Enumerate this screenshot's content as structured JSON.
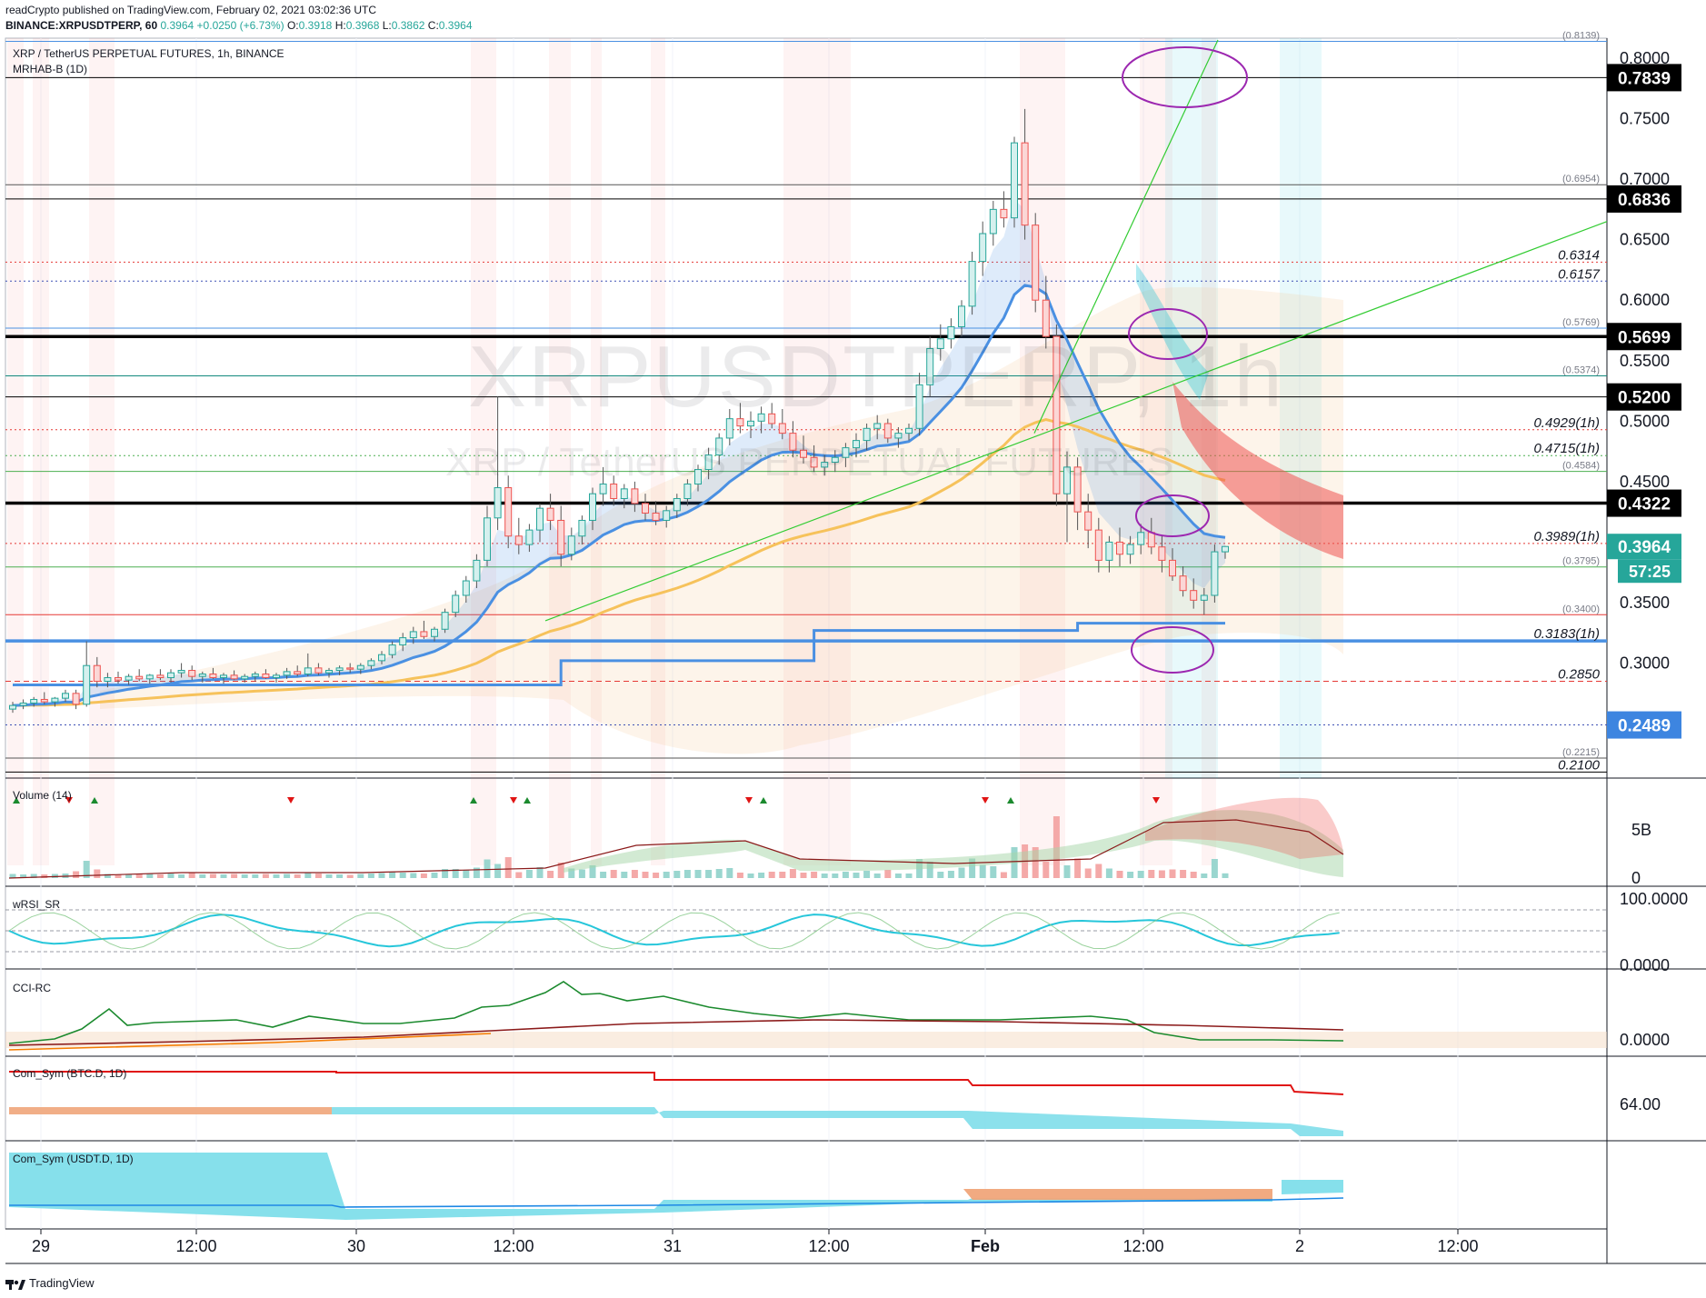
{
  "header": {
    "author_line": "readCrypto published on TradingView.com, February 02, 2021 03:02:36 UTC",
    "author": "readCrypto",
    "ohlc_line": {
      "symbol": "BINANCE:XRPUSDTPERP, 60",
      "last": "0.3964",
      "change": "+0.0250 (+6.73%)",
      "o_label": "O:",
      "o": "0.3918",
      "h_label": "H:",
      "h": "0.3968",
      "l_label": "L:",
      "l": "0.3862",
      "c_label": "C:",
      "c": "0.3964"
    }
  },
  "legend": {
    "symbol_title": "XRP / TetherUS PERPETUAL FUTURES, 1h, BINANCE",
    "indicator": "MRHAB-B (1D)"
  },
  "watermark": {
    "ticker": "XRPUSDTPERP, 1h",
    "name": "XRP / TetherUS PERPETUAL FUTURES"
  },
  "panes": {
    "volume": "Volume (14)",
    "rsi": "wRSI_SR",
    "cci": "CCI-RC",
    "btcd": "Com_Sym (BTC.D, 1D)",
    "usdtd": "Com_Sym (USDT.D, 1D)"
  },
  "footer": {
    "brand": "TradingView"
  },
  "colors": {
    "up": "#26a69a",
    "down": "#ef5350",
    "ma_blue": "#4a90e2",
    "ma_yellow": "#f6c25b",
    "line_green": "#33cc33",
    "black": "#000000",
    "circle": "#9c27b0",
    "price_badge": "#26a69a",
    "blue_badge": "#3d85e0"
  },
  "chart_data": [
    {
      "type": "candlestick",
      "title": "XRP / TetherUS PERPETUAL FUTURES, 1h, BINANCE",
      "x_ticks": [
        "29",
        "12:00",
        "30",
        "12:00",
        "31",
        "12:00",
        "Feb",
        "12:00",
        "2",
        "12:00"
      ],
      "y_ticks": [
        "0.8000",
        "0.7500",
        "0.7000",
        "0.6500",
        "0.6000",
        "0.5500",
        "0.5000",
        "0.4500",
        "0.3500",
        "0.3000"
      ],
      "ylim": [
        0.205,
        0.815
      ],
      "current_price": "0.3964",
      "countdown": "57:25",
      "price_badges": [
        {
          "label": "0.7839",
          "value": 0.7839,
          "style": "black"
        },
        {
          "label": "0.6836",
          "value": 0.6836,
          "style": "black"
        },
        {
          "label": "0.5699",
          "value": 0.5699,
          "style": "black"
        },
        {
          "label": "0.5200",
          "value": 0.52,
          "style": "black"
        },
        {
          "label": "0.4322",
          "value": 0.4322,
          "style": "black"
        },
        {
          "label": "0.2489",
          "value": 0.2489,
          "style": "blue"
        }
      ],
      "level_lines": [
        {
          "value": 0.8139,
          "color": "#4a90e2",
          "label": "(0.8139)",
          "style": "solid"
        },
        {
          "value": 0.7839,
          "color": "#000000",
          "label": "",
          "style": "solid"
        },
        {
          "value": 0.6954,
          "color": "#555555",
          "label": "(0.6954)",
          "style": "solid"
        },
        {
          "value": 0.6836,
          "color": "#000000",
          "label": "",
          "style": "solid"
        },
        {
          "value": 0.6314,
          "color": "#e53935",
          "label": "0.6314",
          "style": "dotted"
        },
        {
          "value": 0.6157,
          "color": "#3f51b5",
          "label": "0.6157",
          "style": "dotted"
        },
        {
          "value": 0.5769,
          "color": "#4a90e2",
          "label": "(0.5769)",
          "style": "solid"
        },
        {
          "value": 0.5699,
          "color": "#000000",
          "label": "",
          "style": "bold"
        },
        {
          "value": 0.5374,
          "color": "#138a7e",
          "label": "(0.5374)",
          "style": "solid"
        },
        {
          "value": 0.52,
          "color": "#000000",
          "label": "",
          "style": "solid"
        },
        {
          "value": 0.4929,
          "color": "#e53935",
          "label": "0.4929(1h)",
          "style": "dotted"
        },
        {
          "value": 0.4715,
          "color": "#4caf50",
          "label": "0.4715(1h)",
          "style": "dotted"
        },
        {
          "value": 0.4584,
          "color": "#4caf50",
          "label": "(0.4584)",
          "style": "solid"
        },
        {
          "value": 0.4322,
          "color": "#000000",
          "label": "",
          "style": "bold"
        },
        {
          "value": 0.3989,
          "color": "#e53935",
          "label": "0.3989(1h)",
          "style": "dotted"
        },
        {
          "value": 0.3795,
          "color": "#4caf50",
          "label": "(0.3795)",
          "style": "solid"
        },
        {
          "value": 0.34,
          "color": "#e53935",
          "label": "(0.3400)",
          "style": "solid"
        },
        {
          "value": 0.3183,
          "color": "#4a90e2",
          "label": "0.3183(1h)",
          "style": "thick"
        },
        {
          "value": 0.285,
          "color": "#e53935",
          "label": "0.2850",
          "style": "dashed"
        },
        {
          "value": 0.2489,
          "color": "#3f51b5",
          "label": "",
          "style": "dotted"
        },
        {
          "value": 0.2215,
          "color": "#555555",
          "label": "(0.2215)",
          "style": "solid"
        },
        {
          "value": 0.21,
          "color": "#000000",
          "label": "0.2100",
          "style": "solid"
        }
      ],
      "candles": [
        [
          0.262,
          0.268,
          0.259,
          0.265
        ],
        [
          0.265,
          0.27,
          0.262,
          0.267
        ],
        [
          0.267,
          0.272,
          0.264,
          0.27
        ],
        [
          0.27,
          0.276,
          0.266,
          0.268
        ],
        [
          0.268,
          0.272,
          0.264,
          0.271
        ],
        [
          0.271,
          0.278,
          0.268,
          0.275
        ],
        [
          0.275,
          0.278,
          0.262,
          0.266
        ],
        [
          0.266,
          0.318,
          0.264,
          0.298
        ],
        [
          0.298,
          0.305,
          0.28,
          0.285
        ],
        [
          0.285,
          0.292,
          0.28,
          0.288
        ],
        [
          0.288,
          0.293,
          0.283,
          0.286
        ],
        [
          0.286,
          0.291,
          0.282,
          0.289
        ],
        [
          0.289,
          0.295,
          0.285,
          0.287
        ],
        [
          0.287,
          0.291,
          0.283,
          0.29
        ],
        [
          0.29,
          0.295,
          0.286,
          0.288
        ],
        [
          0.288,
          0.295,
          0.284,
          0.292
        ],
        [
          0.292,
          0.3,
          0.288,
          0.294
        ],
        [
          0.294,
          0.298,
          0.286,
          0.289
        ],
        [
          0.289,
          0.293,
          0.284,
          0.291
        ],
        [
          0.291,
          0.296,
          0.287,
          0.288
        ],
        [
          0.288,
          0.292,
          0.283,
          0.29
        ],
        [
          0.29,
          0.294,
          0.286,
          0.287
        ],
        [
          0.287,
          0.291,
          0.284,
          0.289
        ],
        [
          0.289,
          0.293,
          0.285,
          0.291
        ],
        [
          0.291,
          0.295,
          0.287,
          0.288
        ],
        [
          0.288,
          0.292,
          0.284,
          0.29
        ],
        [
          0.29,
          0.296,
          0.287,
          0.293
        ],
        [
          0.293,
          0.298,
          0.289,
          0.291
        ],
        [
          0.291,
          0.308,
          0.289,
          0.296
        ],
        [
          0.296,
          0.3,
          0.29,
          0.292
        ],
        [
          0.292,
          0.296,
          0.288,
          0.294
        ],
        [
          0.294,
          0.298,
          0.29,
          0.296
        ],
        [
          0.296,
          0.3,
          0.292,
          0.295
        ],
        [
          0.295,
          0.3,
          0.291,
          0.298
        ],
        [
          0.298,
          0.304,
          0.295,
          0.302
        ],
        [
          0.302,
          0.31,
          0.299,
          0.307
        ],
        [
          0.307,
          0.318,
          0.304,
          0.315
        ],
        [
          0.315,
          0.325,
          0.31,
          0.321
        ],
        [
          0.321,
          0.33,
          0.316,
          0.326
        ],
        [
          0.326,
          0.335,
          0.32,
          0.322
        ],
        [
          0.322,
          0.33,
          0.318,
          0.328
        ],
        [
          0.328,
          0.345,
          0.325,
          0.342
        ],
        [
          0.342,
          0.36,
          0.338,
          0.356
        ],
        [
          0.356,
          0.372,
          0.35,
          0.368
        ],
        [
          0.368,
          0.39,
          0.362,
          0.385
        ],
        [
          0.385,
          0.43,
          0.38,
          0.42
        ],
        [
          0.42,
          0.52,
          0.41,
          0.445
        ],
        [
          0.445,
          0.455,
          0.395,
          0.405
        ],
        [
          0.405,
          0.42,
          0.39,
          0.398
        ],
        [
          0.398,
          0.415,
          0.392,
          0.41
        ],
        [
          0.41,
          0.432,
          0.4,
          0.428
        ],
        [
          0.428,
          0.44,
          0.41,
          0.418
        ],
        [
          0.418,
          0.43,
          0.38,
          0.39
        ],
        [
          0.39,
          0.412,
          0.385,
          0.405
        ],
        [
          0.405,
          0.422,
          0.398,
          0.418
        ],
        [
          0.418,
          0.445,
          0.41,
          0.44
        ],
        [
          0.44,
          0.462,
          0.43,
          0.448
        ],
        [
          0.448,
          0.455,
          0.43,
          0.436
        ],
        [
          0.436,
          0.448,
          0.428,
          0.444
        ],
        [
          0.444,
          0.45,
          0.425,
          0.432
        ],
        [
          0.432,
          0.44,
          0.418,
          0.424
        ],
        [
          0.424,
          0.434,
          0.414,
          0.418
        ],
        [
          0.418,
          0.43,
          0.412,
          0.426
        ],
        [
          0.426,
          0.44,
          0.42,
          0.436
        ],
        [
          0.436,
          0.452,
          0.43,
          0.448
        ],
        [
          0.448,
          0.464,
          0.442,
          0.46
        ],
        [
          0.46,
          0.478,
          0.452,
          0.472
        ],
        [
          0.472,
          0.49,
          0.464,
          0.486
        ],
        [
          0.486,
          0.51,
          0.48,
          0.502
        ],
        [
          0.502,
          0.515,
          0.49,
          0.496
        ],
        [
          0.496,
          0.508,
          0.486,
          0.5
        ],
        [
          0.5,
          0.512,
          0.49,
          0.506
        ],
        [
          0.506,
          0.515,
          0.494,
          0.498
        ],
        [
          0.498,
          0.51,
          0.485,
          0.49
        ],
        [
          0.49,
          0.5,
          0.47,
          0.476
        ],
        [
          0.476,
          0.488,
          0.465,
          0.47
        ],
        [
          0.47,
          0.48,
          0.458,
          0.462
        ],
        [
          0.462,
          0.472,
          0.455,
          0.466
        ],
        [
          0.466,
          0.476,
          0.458,
          0.47
        ],
        [
          0.47,
          0.482,
          0.462,
          0.478
        ],
        [
          0.478,
          0.49,
          0.47,
          0.484
        ],
        [
          0.484,
          0.498,
          0.476,
          0.494
        ],
        [
          0.494,
          0.505,
          0.485,
          0.498
        ],
        [
          0.498,
          0.502,
          0.482,
          0.486
        ],
        [
          0.486,
          0.495,
          0.478,
          0.49
        ],
        [
          0.49,
          0.498,
          0.484,
          0.494
        ],
        [
          0.494,
          0.54,
          0.488,
          0.53
        ],
        [
          0.53,
          0.57,
          0.52,
          0.56
        ],
        [
          0.56,
          0.58,
          0.55,
          0.568
        ],
        [
          0.568,
          0.585,
          0.56,
          0.578
        ],
        [
          0.578,
          0.6,
          0.57,
          0.595
        ],
        [
          0.595,
          0.64,
          0.588,
          0.632
        ],
        [
          0.632,
          0.665,
          0.62,
          0.655
        ],
        [
          0.655,
          0.682,
          0.645,
          0.675
        ],
        [
          0.675,
          0.69,
          0.66,
          0.668
        ],
        [
          0.668,
          0.735,
          0.66,
          0.73
        ],
        [
          0.73,
          0.758,
          0.65,
          0.662
        ],
        [
          0.662,
          0.672,
          0.59,
          0.6
        ],
        [
          0.6,
          0.62,
          0.56,
          0.57
        ],
        [
          0.57,
          0.58,
          0.43,
          0.44
        ],
        [
          0.44,
          0.475,
          0.4,
          0.462
        ],
        [
          0.462,
          0.47,
          0.41,
          0.425
        ],
        [
          0.425,
          0.44,
          0.395,
          0.41
        ],
        [
          0.41,
          0.42,
          0.375,
          0.385
        ],
        [
          0.385,
          0.405,
          0.375,
          0.4
        ],
        [
          0.4,
          0.412,
          0.38,
          0.39
        ],
        [
          0.39,
          0.405,
          0.382,
          0.398
        ],
        [
          0.398,
          0.415,
          0.39,
          0.408
        ],
        [
          0.408,
          0.42,
          0.39,
          0.396
        ],
        [
          0.396,
          0.405,
          0.375,
          0.385
        ],
        [
          0.385,
          0.395,
          0.368,
          0.372
        ],
        [
          0.372,
          0.38,
          0.355,
          0.36
        ],
        [
          0.36,
          0.37,
          0.345,
          0.352
        ],
        [
          0.352,
          0.362,
          0.34,
          0.356
        ],
        [
          0.356,
          0.398,
          0.35,
          0.392
        ],
        [
          0.392,
          0.3968,
          0.3862,
          0.3964
        ]
      ]
    },
    {
      "type": "bar",
      "name": "Volume (14)",
      "y_ticks": [
        "5B",
        "0"
      ]
    },
    {
      "type": "line",
      "name": "wRSI_SR",
      "y_ticks": [
        "100.0000",
        "0.0000"
      ]
    },
    {
      "type": "line",
      "name": "CCI-RC",
      "y_ticks": [
        "0.0000"
      ]
    },
    {
      "type": "area",
      "name": "Com_Sym (BTC.D, 1D)",
      "y_ticks": [
        "64.00"
      ]
    },
    {
      "type": "area",
      "name": "Com_Sym (USDT.D, 1D)",
      "y_ticks": []
    }
  ]
}
